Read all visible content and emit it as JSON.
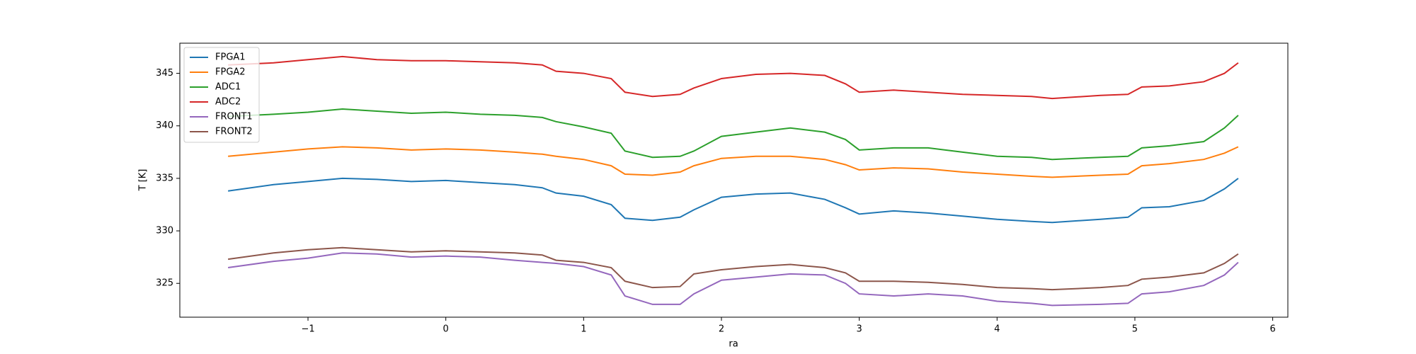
{
  "chart_data": {
    "type": "line",
    "xlabel": "ra",
    "ylabel": "T [K]",
    "x": [
      -1.58,
      -1.25,
      -1.0,
      -0.75,
      -0.5,
      -0.25,
      0,
      0.25,
      0.5,
      0.7,
      0.8,
      1.0,
      1.2,
      1.3,
      1.5,
      1.7,
      1.8,
      2.0,
      2.25,
      2.5,
      2.75,
      2.9,
      3.0,
      3.25,
      3.5,
      3.75,
      4.0,
      4.25,
      4.4,
      4.75,
      4.95,
      5.05,
      5.25,
      5.5,
      5.65,
      5.75
    ],
    "series": [
      {
        "name": "FPGA1",
        "color": "#1f77b4",
        "values": [
          333.8,
          334.4,
          334.7,
          335.0,
          334.9,
          334.7,
          334.8,
          334.6,
          334.4,
          334.1,
          333.6,
          333.3,
          332.5,
          331.2,
          331.0,
          331.3,
          332.0,
          333.2,
          333.5,
          333.6,
          333.0,
          332.2,
          331.6,
          331.9,
          331.7,
          331.4,
          331.1,
          330.9,
          330.8,
          331.1,
          331.3,
          332.2,
          332.3,
          332.9,
          334.0,
          335.0
        ]
      },
      {
        "name": "FPGA2",
        "color": "#ff7f0e",
        "values": [
          337.1,
          337.5,
          337.8,
          338.0,
          337.9,
          337.7,
          337.8,
          337.7,
          337.5,
          337.3,
          337.1,
          336.8,
          336.2,
          335.4,
          335.3,
          335.6,
          336.2,
          336.9,
          337.1,
          337.1,
          336.8,
          336.3,
          335.8,
          336.0,
          335.9,
          335.6,
          335.4,
          335.2,
          335.1,
          335.3,
          335.4,
          336.2,
          336.4,
          336.8,
          337.4,
          338.0
        ]
      },
      {
        "name": "ADC1",
        "color": "#2ca02c",
        "values": [
          340.9,
          341.1,
          341.3,
          341.6,
          341.4,
          341.2,
          341.3,
          341.1,
          341.0,
          340.8,
          340.4,
          339.9,
          339.3,
          337.6,
          337.0,
          337.1,
          337.6,
          339.0,
          339.4,
          339.8,
          339.4,
          338.7,
          337.7,
          337.9,
          337.9,
          337.5,
          337.1,
          337.0,
          336.8,
          337.0,
          337.1,
          337.9,
          338.1,
          338.5,
          339.8,
          341.0
        ]
      },
      {
        "name": "ADC2",
        "color": "#d62728",
        "values": [
          345.8,
          346.0,
          346.3,
          346.6,
          346.3,
          346.2,
          346.2,
          346.1,
          346.0,
          345.8,
          345.2,
          345.0,
          344.5,
          343.2,
          342.8,
          343.0,
          343.6,
          344.5,
          344.9,
          345.0,
          344.8,
          344.0,
          343.2,
          343.4,
          343.2,
          343.0,
          342.9,
          342.8,
          342.6,
          342.9,
          343.0,
          343.7,
          343.8,
          344.2,
          345.0,
          346.0
        ]
      },
      {
        "name": "FRONT1",
        "color": "#9467bd",
        "values": [
          326.5,
          327.1,
          327.4,
          327.9,
          327.8,
          327.5,
          327.6,
          327.5,
          327.2,
          327.0,
          326.9,
          326.6,
          325.8,
          323.8,
          323.0,
          323.0,
          324.0,
          325.3,
          325.6,
          325.9,
          325.8,
          325.0,
          324.0,
          323.8,
          324.0,
          323.8,
          323.3,
          323.1,
          322.9,
          323.0,
          323.1,
          324.0,
          324.2,
          324.8,
          325.8,
          327.0
        ]
      },
      {
        "name": "FRONT2",
        "color": "#8c564b",
        "values": [
          327.3,
          327.9,
          328.2,
          328.4,
          328.2,
          328.0,
          328.1,
          328.0,
          327.9,
          327.7,
          327.2,
          327.0,
          326.5,
          325.2,
          324.6,
          324.7,
          325.9,
          326.3,
          326.6,
          326.8,
          326.5,
          326.0,
          325.2,
          325.2,
          325.1,
          324.9,
          324.6,
          324.5,
          324.4,
          324.6,
          324.8,
          325.4,
          325.6,
          326.0,
          326.9,
          327.8
        ]
      }
    ],
    "xlim": [
      -1.93,
      6.11
    ],
    "ylim": [
      321.78,
      347.87
    ],
    "xticks": [
      {
        "value": -1,
        "label": "−1"
      },
      0,
      1,
      2,
      3,
      4,
      5,
      6
    ],
    "yticks": [
      325,
      330,
      335,
      340,
      345
    ],
    "legend": "upper left"
  }
}
